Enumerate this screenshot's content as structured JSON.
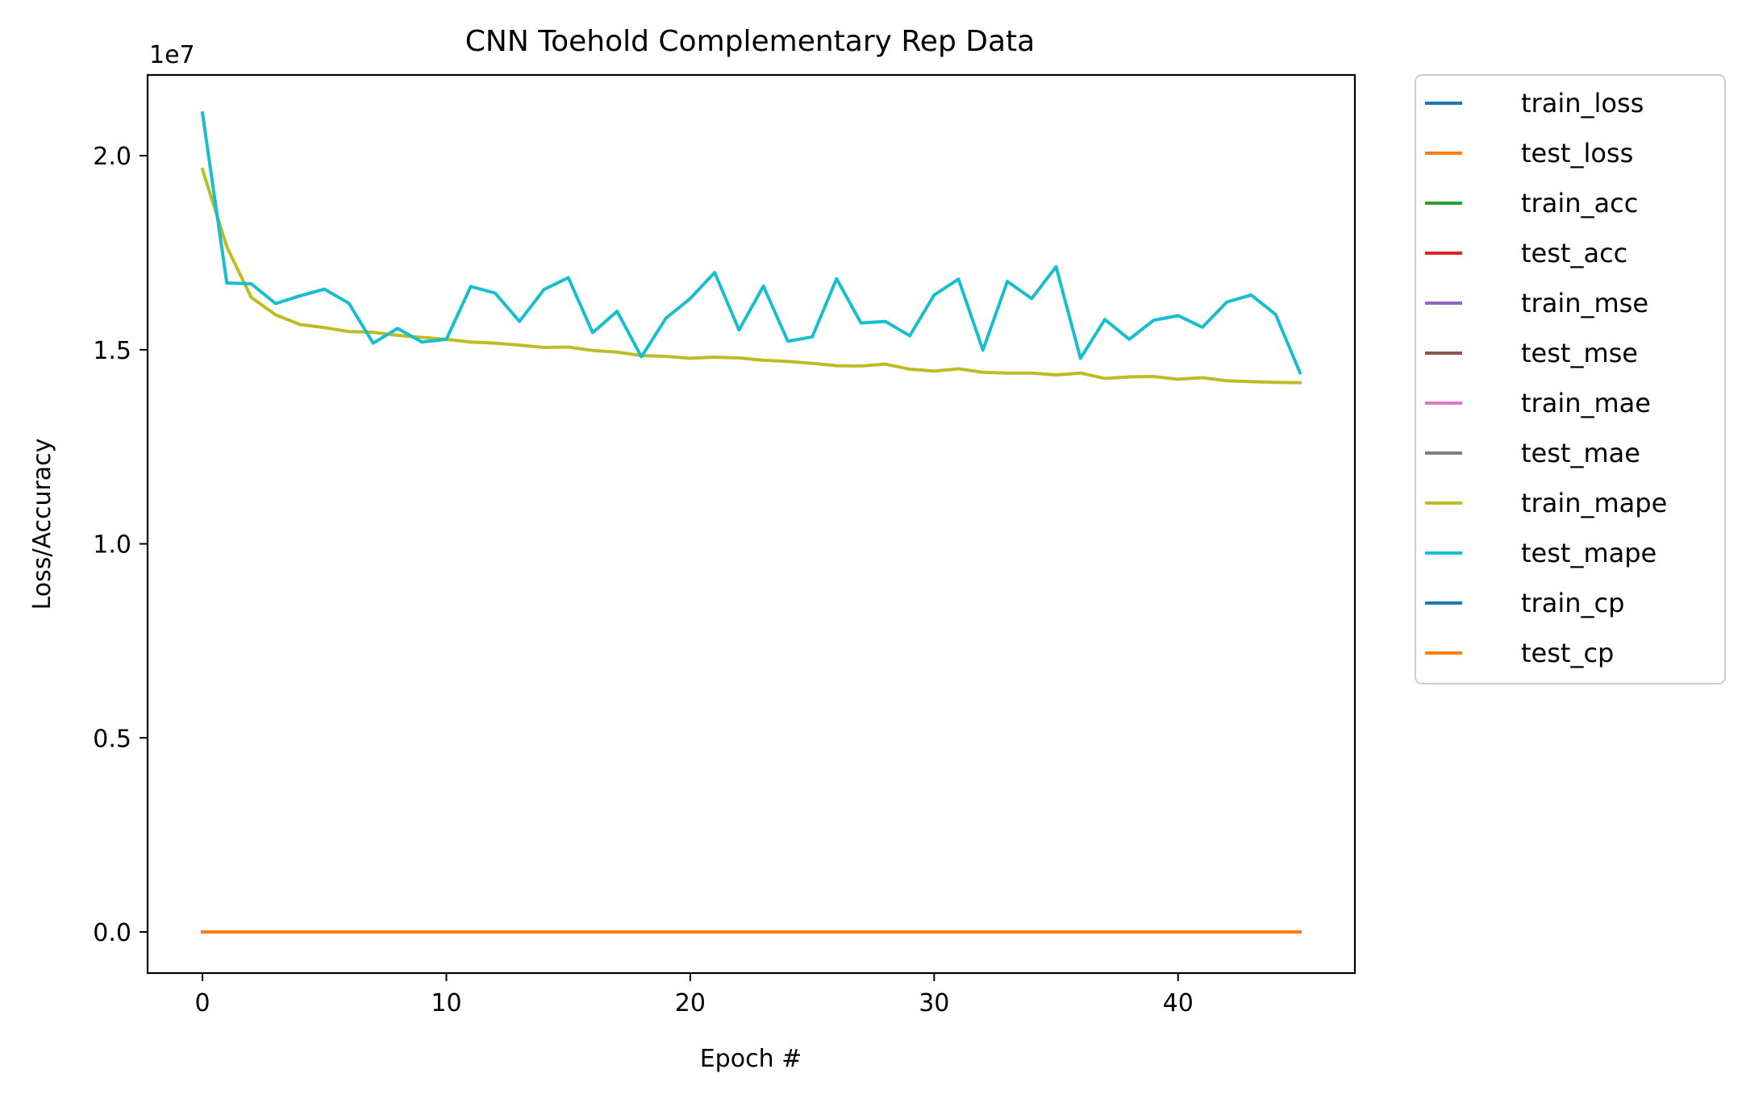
{
  "chart_data": {
    "type": "line",
    "title": "CNN Toehold Complementary Rep Data",
    "xlabel": "Epoch #",
    "ylabel": "Loss/Accuracy",
    "y_offset_label": "1e7",
    "xlim": [
      -2.25,
      47.25
    ],
    "ylim": [
      -1060000,
      22080000
    ],
    "x_ticks": [
      0,
      10,
      20,
      30,
      40
    ],
    "y_ticks": [
      0,
      5000000,
      10000000,
      15000000,
      20000000
    ],
    "y_tick_labels": [
      "0.0",
      "0.5",
      "1.0",
      "1.5",
      "2.0"
    ],
    "grid": false,
    "legend_position": "outside-top-right",
    "x": [
      0,
      1,
      2,
      3,
      4,
      5,
      6,
      7,
      8,
      9,
      10,
      11,
      12,
      13,
      14,
      15,
      16,
      17,
      18,
      19,
      20,
      21,
      22,
      23,
      24,
      25,
      26,
      27,
      28,
      29,
      30,
      31,
      32,
      33,
      34,
      35,
      36,
      37,
      38,
      39,
      40,
      41,
      42,
      43,
      44,
      45
    ],
    "series": [
      {
        "name": "train_loss",
        "color": "#1f77b4",
        "values": [
          0,
          0,
          0,
          0,
          0,
          0,
          0,
          0,
          0,
          0,
          0,
          0,
          0,
          0,
          0,
          0,
          0,
          0,
          0,
          0,
          0,
          0,
          0,
          0,
          0,
          0,
          0,
          0,
          0,
          0,
          0,
          0,
          0,
          0,
          0,
          0,
          0,
          0,
          0,
          0,
          0,
          0,
          0,
          0,
          0,
          0
        ]
      },
      {
        "name": "test_loss",
        "color": "#ff7f0e",
        "values": [
          0,
          0,
          0,
          0,
          0,
          0,
          0,
          0,
          0,
          0,
          0,
          0,
          0,
          0,
          0,
          0,
          0,
          0,
          0,
          0,
          0,
          0,
          0,
          0,
          0,
          0,
          0,
          0,
          0,
          0,
          0,
          0,
          0,
          0,
          0,
          0,
          0,
          0,
          0,
          0,
          0,
          0,
          0,
          0,
          0,
          0
        ]
      },
      {
        "name": "train_acc",
        "color": "#2ca02c",
        "values": [
          0,
          0,
          0,
          0,
          0,
          0,
          0,
          0,
          0,
          0,
          0,
          0,
          0,
          0,
          0,
          0,
          0,
          0,
          0,
          0,
          0,
          0,
          0,
          0,
          0,
          0,
          0,
          0,
          0,
          0,
          0,
          0,
          0,
          0,
          0,
          0,
          0,
          0,
          0,
          0,
          0,
          0,
          0,
          0,
          0,
          0
        ]
      },
      {
        "name": "test_acc",
        "color": "#d62728",
        "values": [
          0,
          0,
          0,
          0,
          0,
          0,
          0,
          0,
          0,
          0,
          0,
          0,
          0,
          0,
          0,
          0,
          0,
          0,
          0,
          0,
          0,
          0,
          0,
          0,
          0,
          0,
          0,
          0,
          0,
          0,
          0,
          0,
          0,
          0,
          0,
          0,
          0,
          0,
          0,
          0,
          0,
          0,
          0,
          0,
          0,
          0
        ]
      },
      {
        "name": "train_mse",
        "color": "#9467bd",
        "values": [
          0,
          0,
          0,
          0,
          0,
          0,
          0,
          0,
          0,
          0,
          0,
          0,
          0,
          0,
          0,
          0,
          0,
          0,
          0,
          0,
          0,
          0,
          0,
          0,
          0,
          0,
          0,
          0,
          0,
          0,
          0,
          0,
          0,
          0,
          0,
          0,
          0,
          0,
          0,
          0,
          0,
          0,
          0,
          0,
          0,
          0
        ]
      },
      {
        "name": "test_mse",
        "color": "#8c564b",
        "values": [
          0,
          0,
          0,
          0,
          0,
          0,
          0,
          0,
          0,
          0,
          0,
          0,
          0,
          0,
          0,
          0,
          0,
          0,
          0,
          0,
          0,
          0,
          0,
          0,
          0,
          0,
          0,
          0,
          0,
          0,
          0,
          0,
          0,
          0,
          0,
          0,
          0,
          0,
          0,
          0,
          0,
          0,
          0,
          0,
          0,
          0
        ]
      },
      {
        "name": "train_mae",
        "color": "#e377c2",
        "values": [
          0,
          0,
          0,
          0,
          0,
          0,
          0,
          0,
          0,
          0,
          0,
          0,
          0,
          0,
          0,
          0,
          0,
          0,
          0,
          0,
          0,
          0,
          0,
          0,
          0,
          0,
          0,
          0,
          0,
          0,
          0,
          0,
          0,
          0,
          0,
          0,
          0,
          0,
          0,
          0,
          0,
          0,
          0,
          0,
          0,
          0
        ]
      },
      {
        "name": "test_mae",
        "color": "#7f7f7f",
        "values": [
          0,
          0,
          0,
          0,
          0,
          0,
          0,
          0,
          0,
          0,
          0,
          0,
          0,
          0,
          0,
          0,
          0,
          0,
          0,
          0,
          0,
          0,
          0,
          0,
          0,
          0,
          0,
          0,
          0,
          0,
          0,
          0,
          0,
          0,
          0,
          0,
          0,
          0,
          0,
          0,
          0,
          0,
          0,
          0,
          0,
          0
        ]
      },
      {
        "name": "train_mape",
        "color": "#bcbd22",
        "values": [
          19650000,
          17650000,
          16350000,
          15900000,
          15650000,
          15570000,
          15470000,
          15450000,
          15370000,
          15320000,
          15270000,
          15200000,
          15170000,
          15120000,
          15060000,
          15070000,
          14980000,
          14940000,
          14850000,
          14830000,
          14780000,
          14810000,
          14790000,
          14730000,
          14700000,
          14650000,
          14590000,
          14580000,
          14630000,
          14500000,
          14450000,
          14510000,
          14420000,
          14400000,
          14400000,
          14350000,
          14400000,
          14260000,
          14300000,
          14310000,
          14240000,
          14280000,
          14200000,
          14180000,
          14160000,
          14150000
        ]
      },
      {
        "name": "test_mape",
        "color": "#17becf",
        "values": [
          21100000,
          16720000,
          16700000,
          16190000,
          16390000,
          16560000,
          16200000,
          15170000,
          15550000,
          15200000,
          15270000,
          16630000,
          16460000,
          15730000,
          16550000,
          16860000,
          15440000,
          15990000,
          14820000,
          15810000,
          16320000,
          16990000,
          15510000,
          16640000,
          15220000,
          15330000,
          16830000,
          15690000,
          15730000,
          15360000,
          16410000,
          16820000,
          14990000,
          16760000,
          16320000,
          17140000,
          14780000,
          15780000,
          15270000,
          15760000,
          15880000,
          15580000,
          16230000,
          16410000,
          15910000,
          14410000
        ]
      },
      {
        "name": "train_cp",
        "color": "#1f77b4",
        "values": [
          0,
          0,
          0,
          0,
          0,
          0,
          0,
          0,
          0,
          0,
          0,
          0,
          0,
          0,
          0,
          0,
          0,
          0,
          0,
          0,
          0,
          0,
          0,
          0,
          0,
          0,
          0,
          0,
          0,
          0,
          0,
          0,
          0,
          0,
          0,
          0,
          0,
          0,
          0,
          0,
          0,
          0,
          0,
          0,
          0,
          0
        ]
      },
      {
        "name": "test_cp",
        "color": "#ff7f0e",
        "values": [
          0,
          0,
          0,
          0,
          0,
          0,
          0,
          0,
          0,
          0,
          0,
          0,
          0,
          0,
          0,
          0,
          0,
          0,
          0,
          0,
          0,
          0,
          0,
          0,
          0,
          0,
          0,
          0,
          0,
          0,
          0,
          0,
          0,
          0,
          0,
          0,
          0,
          0,
          0,
          0,
          0,
          0,
          0,
          0,
          0,
          0
        ]
      }
    ]
  }
}
